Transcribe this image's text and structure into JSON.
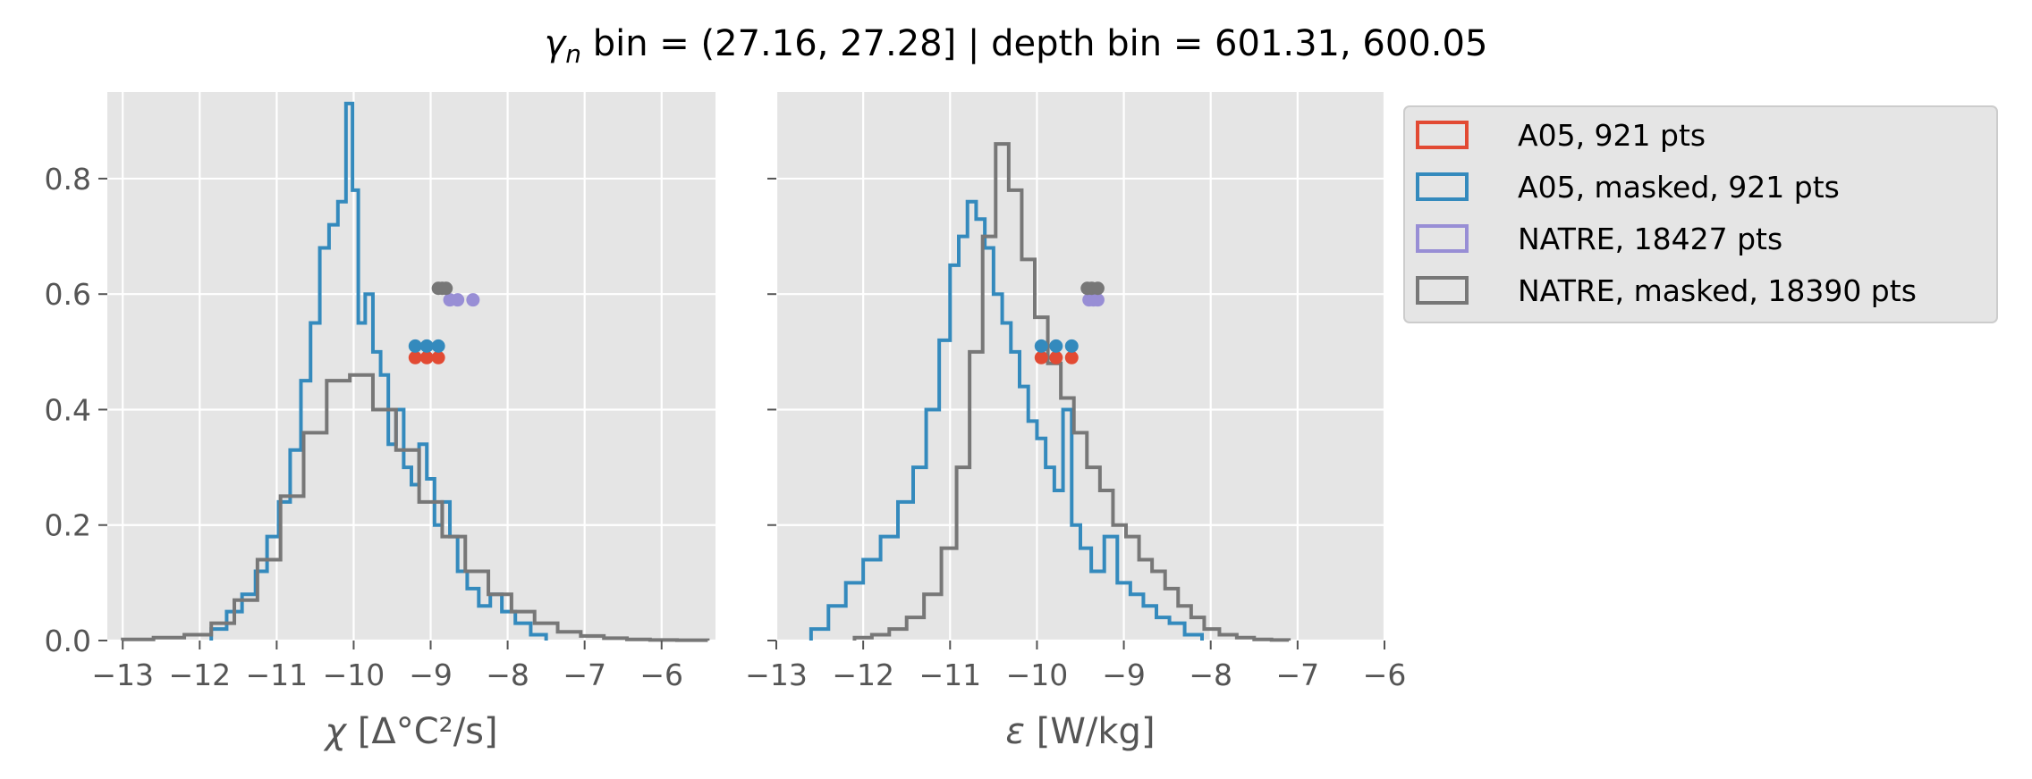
{
  "figure": {
    "title_prefix": "γ",
    "title_sub": "n",
    "title_rest": " bin = (27.16, 27.28] | depth bin = 601.31, 600.05"
  },
  "colors": {
    "panel_bg": "#E5E5E5",
    "grid": "#FFFFFF",
    "A05": "#E24A33",
    "A05_masked": "#348ABD",
    "NATRE": "#988ED5",
    "NATRE_masked": "#777777"
  },
  "legend": {
    "placement": "outside upper-right",
    "entries": [
      {
        "label": "A05, 921 pts",
        "color": "#E24A33"
      },
      {
        "label": "A05, masked,  921 pts",
        "color": "#348ABD"
      },
      {
        "label": "NATRE, 18427 pts",
        "color": "#988ED5"
      },
      {
        "label": "NATRE, masked,  18390 pts",
        "color": "#777777"
      }
    ]
  },
  "chart_data": [
    {
      "type": "histogram",
      "panel": "left",
      "xlabel_symbol": "χ",
      "xlabel_rest": " [Δ°C²/s]",
      "xlim": [
        -13.2,
        -5.3
      ],
      "ylim": [
        0,
        0.95
      ],
      "xticks": [
        -13,
        -12,
        -11,
        -10,
        -9,
        -8,
        -7,
        -6
      ],
      "xtick_labels": [
        "−13",
        "−12",
        "−11",
        "−10",
        "−9",
        "−8",
        "−7",
        "−6"
      ],
      "yticks": [
        0.0,
        0.2,
        0.4,
        0.6,
        0.8
      ],
      "ytick_labels": [
        "0.0",
        "0.2",
        "0.4",
        "0.6",
        "0.8"
      ],
      "grid": true,
      "series": [
        {
          "name": "A05, masked,  921 pts",
          "color": "#348ABD",
          "x": [
            -11.75,
            -11.55,
            -11.35,
            -11.2,
            -11.05,
            -10.9,
            -10.75,
            -10.62,
            -10.5,
            -10.38,
            -10.26,
            -10.15,
            -10.05,
            -9.98,
            -9.9,
            -9.8,
            -9.7,
            -9.6,
            -9.5,
            -9.4,
            -9.3,
            -9.2,
            -9.1,
            -9.0,
            -8.9,
            -8.8,
            -8.7,
            -8.6,
            -8.45,
            -8.3,
            -8.15,
            -8.0,
            -7.8,
            -7.6
          ],
          "y": [
            0.02,
            0.05,
            0.08,
            0.12,
            0.18,
            0.24,
            0.33,
            0.45,
            0.55,
            0.68,
            0.72,
            0.76,
            0.93,
            0.78,
            0.55,
            0.6,
            0.5,
            0.46,
            0.34,
            0.4,
            0.3,
            0.27,
            0.34,
            0.28,
            0.2,
            0.24,
            0.18,
            0.12,
            0.09,
            0.06,
            0.08,
            0.05,
            0.03,
            0.01
          ]
        },
        {
          "name": "NATRE, masked,  18390 pts",
          "color": "#777777",
          "x": [
            -12.8,
            -12.4,
            -12.0,
            -11.7,
            -11.4,
            -11.1,
            -10.8,
            -10.5,
            -10.2,
            -9.9,
            -9.6,
            -9.3,
            -9.0,
            -8.7,
            -8.4,
            -8.1,
            -7.8,
            -7.5,
            -7.2,
            -6.9,
            -6.6,
            -6.3,
            -6.0,
            -5.6
          ],
          "y": [
            0.002,
            0.005,
            0.01,
            0.03,
            0.07,
            0.14,
            0.25,
            0.36,
            0.45,
            0.46,
            0.4,
            0.33,
            0.24,
            0.18,
            0.12,
            0.08,
            0.05,
            0.03,
            0.015,
            0.008,
            0.004,
            0.002,
            0.001,
            0.0005
          ]
        }
      ],
      "markers": [
        {
          "name": "A05",
          "color": "#E24A33",
          "y": 0.49,
          "x": [
            -9.2,
            -9.05,
            -8.9
          ]
        },
        {
          "name": "A05, masked",
          "color": "#348ABD",
          "y": 0.51,
          "x": [
            -9.2,
            -9.05,
            -8.9
          ]
        },
        {
          "name": "NATRE",
          "color": "#988ED5",
          "y": 0.59,
          "x": [
            -8.75,
            -8.65,
            -8.45
          ]
        },
        {
          "name": "NATRE, masked",
          "color": "#777777",
          "y": 0.61,
          "x": [
            -8.9,
            -8.85,
            -8.8
          ]
        }
      ]
    },
    {
      "type": "histogram",
      "panel": "right",
      "xlabel_symbol": "ε",
      "xlabel_rest": " [W/kg]",
      "xlim": [
        -13,
        -6
      ],
      "ylim": [
        0,
        0.95
      ],
      "xticks": [
        -13,
        -12,
        -11,
        -10,
        -9,
        -8,
        -7,
        -6
      ],
      "xtick_labels": [
        "−13",
        "−12",
        "−11",
        "−10",
        "−9",
        "−8",
        "−7",
        "−6"
      ],
      "yticks": [
        0.0,
        0.2,
        0.4,
        0.6,
        0.8
      ],
      "grid": true,
      "series": [
        {
          "name": "A05, masked,  921 pts",
          "color": "#348ABD",
          "x": [
            -12.5,
            -12.3,
            -12.1,
            -11.9,
            -11.7,
            -11.5,
            -11.35,
            -11.2,
            -11.05,
            -10.95,
            -10.85,
            -10.75,
            -10.65,
            -10.55,
            -10.45,
            -10.35,
            -10.25,
            -10.15,
            -10.05,
            -9.95,
            -9.85,
            -9.75,
            -9.65,
            -9.55,
            -9.45,
            -9.3,
            -9.15,
            -9.0,
            -8.85,
            -8.7,
            -8.55,
            -8.4,
            -8.2
          ],
          "y": [
            0.02,
            0.06,
            0.1,
            0.14,
            0.18,
            0.24,
            0.3,
            0.4,
            0.52,
            0.65,
            0.7,
            0.76,
            0.73,
            0.68,
            0.6,
            0.55,
            0.5,
            0.44,
            0.38,
            0.35,
            0.3,
            0.26,
            0.4,
            0.2,
            0.16,
            0.12,
            0.18,
            0.1,
            0.08,
            0.06,
            0.04,
            0.03,
            0.01
          ]
        },
        {
          "name": "NATRE, masked,  18390 pts",
          "color": "#777777",
          "x": [
            -12.0,
            -11.8,
            -11.6,
            -11.4,
            -11.2,
            -11.0,
            -10.85,
            -10.7,
            -10.55,
            -10.4,
            -10.25,
            -10.1,
            -9.95,
            -9.8,
            -9.65,
            -9.5,
            -9.35,
            -9.2,
            -9.05,
            -8.9,
            -8.75,
            -8.6,
            -8.45,
            -8.3,
            -8.15,
            -8.0,
            -7.8,
            -7.6,
            -7.4,
            -7.2
          ],
          "y": [
            0.005,
            0.01,
            0.02,
            0.04,
            0.08,
            0.16,
            0.3,
            0.5,
            0.7,
            0.86,
            0.78,
            0.66,
            0.56,
            0.48,
            0.42,
            0.36,
            0.3,
            0.26,
            0.2,
            0.18,
            0.14,
            0.12,
            0.09,
            0.06,
            0.04,
            0.02,
            0.01,
            0.005,
            0.002,
            0.001
          ]
        }
      ],
      "markers": [
        {
          "name": "A05",
          "color": "#E24A33",
          "y": 0.49,
          "x": [
            -9.95,
            -9.78,
            -9.6
          ]
        },
        {
          "name": "A05, masked",
          "color": "#348ABD",
          "y": 0.51,
          "x": [
            -9.95,
            -9.78,
            -9.6
          ]
        },
        {
          "name": "NATRE",
          "color": "#988ED5",
          "y": 0.59,
          "x": [
            -9.4,
            -9.35,
            -9.3
          ]
        },
        {
          "name": "NATRE, masked",
          "color": "#777777",
          "y": 0.61,
          "x": [
            -9.42,
            -9.37,
            -9.3
          ]
        }
      ]
    }
  ]
}
